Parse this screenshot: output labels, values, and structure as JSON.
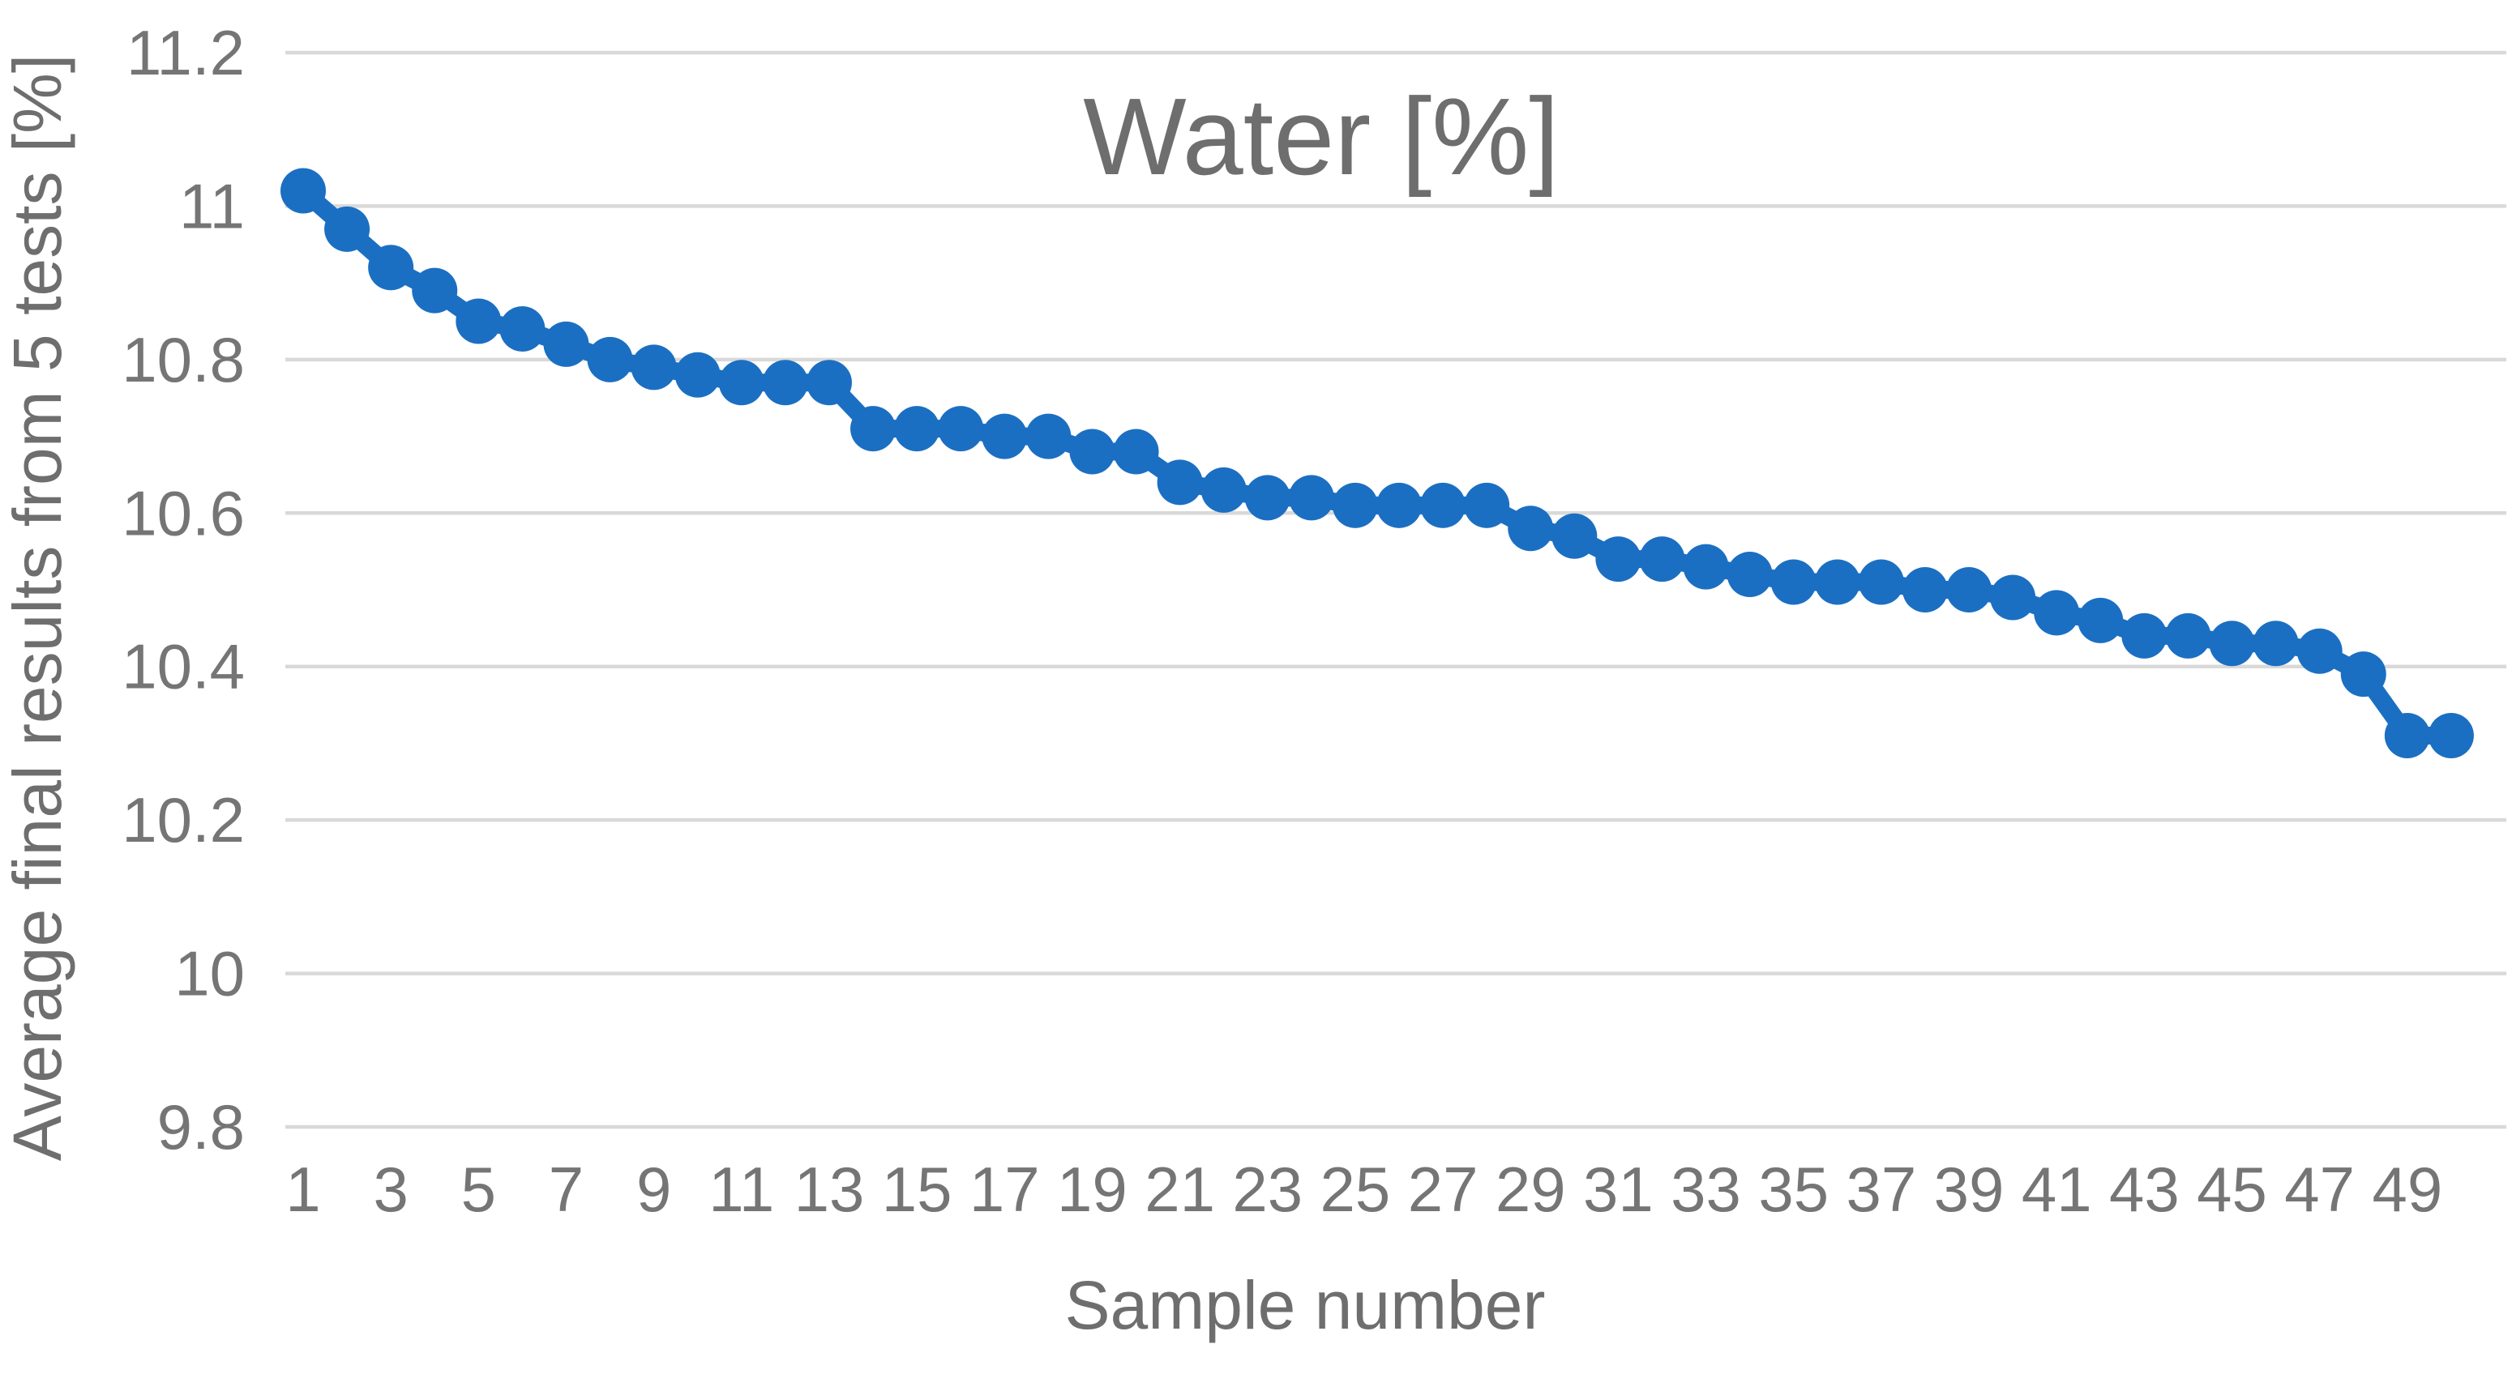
{
  "chart_data": {
    "type": "line",
    "title": "Water [%]",
    "xlabel": "Sample number",
    "ylabel": "Average final results from 5 tests [%]",
    "samples": [
      1,
      2,
      3,
      4,
      5,
      6,
      7,
      8,
      9,
      10,
      11,
      12,
      13,
      14,
      15,
      16,
      17,
      18,
      19,
      20,
      21,
      22,
      23,
      24,
      25,
      26,
      27,
      28,
      29,
      30,
      31,
      32,
      33,
      34,
      35,
      36,
      37,
      38,
      39,
      40,
      41,
      42,
      43,
      44,
      45,
      46,
      47,
      48,
      49,
      50
    ],
    "values": [
      11.02,
      10.97,
      10.92,
      10.89,
      10.85,
      10.84,
      10.82,
      10.8,
      10.79,
      10.78,
      10.77,
      10.77,
      10.77,
      10.71,
      10.71,
      10.71,
      10.7,
      10.7,
      10.68,
      10.68,
      10.64,
      10.63,
      10.62,
      10.62,
      10.61,
      10.61,
      10.61,
      10.61,
      10.58,
      10.57,
      10.54,
      10.54,
      10.53,
      10.52,
      10.51,
      10.51,
      10.51,
      10.5,
      10.5,
      10.49,
      10.47,
      10.46,
      10.44,
      10.44,
      10.43,
      10.43,
      10.42,
      10.39,
      10.31,
      10.31
    ],
    "ylim": [
      9.8,
      11.2
    ],
    "ytick_labels": [
      "11.2",
      "11",
      "10.8",
      "10.6",
      "10.4",
      "10.2",
      "10",
      "9.8"
    ],
    "ytick_values": [
      11.2,
      11.0,
      10.8,
      10.6,
      10.4,
      10.2,
      10.0,
      9.8
    ],
    "xtick_values": [
      1,
      3,
      5,
      7,
      9,
      11,
      13,
      15,
      17,
      19,
      21,
      23,
      25,
      27,
      29,
      31,
      33,
      35,
      37,
      39,
      41,
      43,
      45,
      47,
      49
    ],
    "grid": "horizontal",
    "legend": "none",
    "marker": "circle",
    "series_color": "#1B6FC2",
    "gridline_color": "#D9D9D9",
    "text_color": "#757575"
  }
}
